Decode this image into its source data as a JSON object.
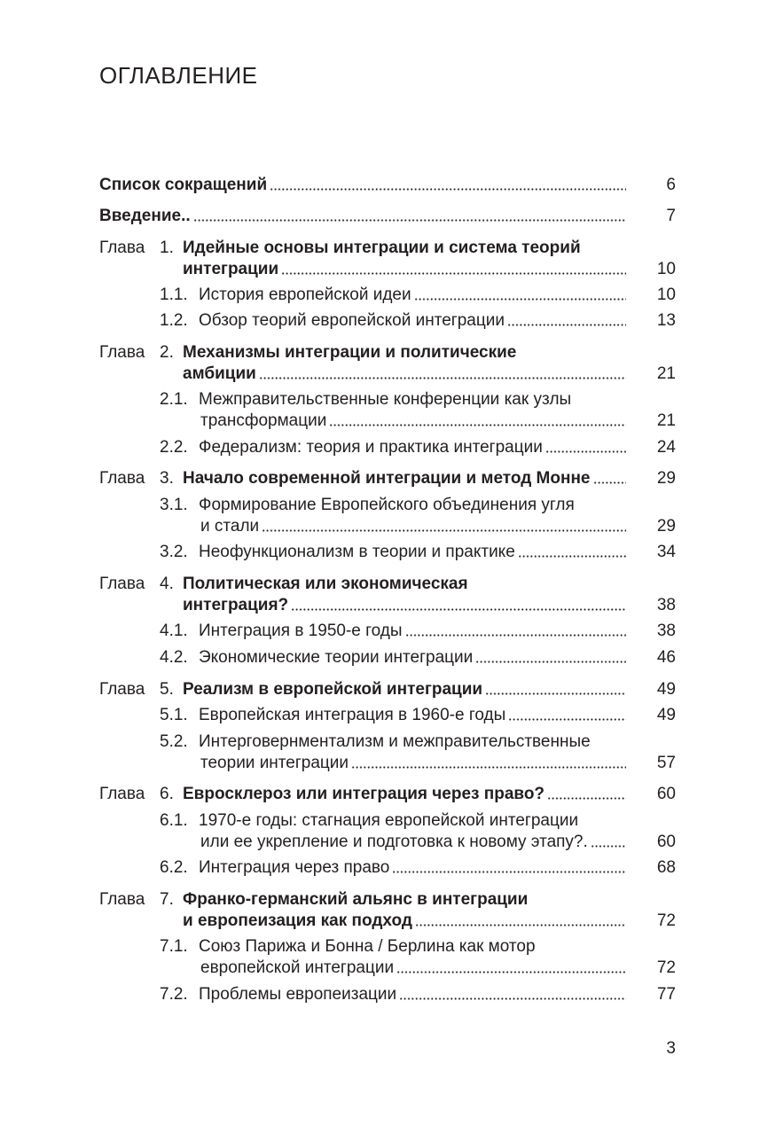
{
  "heading": "ОГЛАВЛЕНИЕ",
  "folio": "3",
  "entries": [
    {
      "kind": "top",
      "lines": [
        "Список сокращений"
      ],
      "page": "6"
    },
    {
      "kind": "top",
      "lines": [
        "Введение.."
      ],
      "page": "7"
    },
    {
      "kind": "chapter",
      "label": "Глава",
      "num": "1.",
      "lines": [
        "Идейные основы интеграции и система теорий",
        "интеграции"
      ],
      "page": "10"
    },
    {
      "kind": "section",
      "num": "1.1.",
      "lines": [
        "История европейской идеи"
      ],
      "page": "10"
    },
    {
      "kind": "section",
      "num": "1.2.",
      "lines": [
        "Обзор теорий европейской интеграции"
      ],
      "page": "13"
    },
    {
      "kind": "chapter",
      "label": "Глава",
      "num": "2.",
      "lines": [
        "Механизмы интеграции и политические",
        "амбиции"
      ],
      "page": "21"
    },
    {
      "kind": "section",
      "num": "2.1.",
      "lines": [
        "Межправительственные конференции как узлы",
        "трансформации"
      ],
      "page": "21"
    },
    {
      "kind": "section",
      "num": "2.2.",
      "lines": [
        "Федерализм: теория и практика интеграции"
      ],
      "page": "24"
    },
    {
      "kind": "chapter",
      "label": "Глава",
      "num": "3.",
      "lines": [
        "Начало современной интеграции и метод Монне"
      ],
      "page": "29"
    },
    {
      "kind": "section",
      "num": "3.1.",
      "lines": [
        "Формирование Европейского объединения угля",
        "и стали"
      ],
      "page": "29"
    },
    {
      "kind": "section",
      "num": "3.2.",
      "lines": [
        "Неофункционализм в теории и практике"
      ],
      "page": "34"
    },
    {
      "kind": "chapter",
      "label": "Глава",
      "num": "4.",
      "lines": [
        "Политическая или экономическая",
        "интеграция?"
      ],
      "page": "38"
    },
    {
      "kind": "section",
      "num": "4.1.",
      "lines": [
        "Интеграция в 1950-е годы"
      ],
      "page": "38"
    },
    {
      "kind": "section",
      "num": "4.2.",
      "lines": [
        "Экономические теории интеграции"
      ],
      "page": "46"
    },
    {
      "kind": "chapter",
      "label": "Глава",
      "num": "5.",
      "lines": [
        "Реализм в европейской интеграции"
      ],
      "page": "49"
    },
    {
      "kind": "section",
      "num": "5.1.",
      "lines": [
        "Европейская интеграция в 1960-е годы"
      ],
      "page": "49"
    },
    {
      "kind": "section",
      "num": "5.2.",
      "lines": [
        "Интерговернментализм и межправительственные",
        "теории интеграции"
      ],
      "page": "57"
    },
    {
      "kind": "chapter",
      "label": "Глава",
      "num": "6.",
      "lines": [
        "Евросклероз или интеграция через право?"
      ],
      "page": "60"
    },
    {
      "kind": "section",
      "num": "6.1.",
      "lines": [
        "1970-е годы: стагнация европейской интеграции",
        "или ее укрепление и подготовка к новому этапу?."
      ],
      "page": "60"
    },
    {
      "kind": "section",
      "num": "6.2.",
      "lines": [
        "Интеграция через право"
      ],
      "page": "68"
    },
    {
      "kind": "chapter",
      "label": "Глава",
      "num": "7.",
      "lines": [
        "Франко-германский альянс в интеграции",
        "и европеизация как подход"
      ],
      "page": "72"
    },
    {
      "kind": "section",
      "num": "7.1.",
      "lines": [
        "Союз Парижа и Бонна / Берлина как мотор",
        "европейской интеграции"
      ],
      "page": "72"
    },
    {
      "kind": "section",
      "num": "7.2.",
      "lines": [
        "Проблемы европеизации"
      ],
      "page": "77"
    }
  ]
}
